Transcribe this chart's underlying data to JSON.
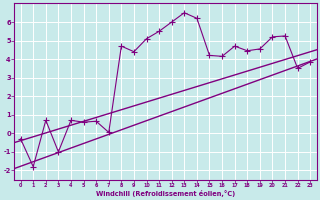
{
  "xlabel": "Windchill (Refroidissement éolien,°C)",
  "bg_color": "#c8eaea",
  "line_color": "#800080",
  "grid_color": "#ffffff",
  "xlim": [
    -0.5,
    23.5
  ],
  "ylim": [
    -2.5,
    7.0
  ],
  "xticks": [
    0,
    1,
    2,
    3,
    4,
    5,
    6,
    7,
    8,
    9,
    10,
    11,
    12,
    13,
    14,
    15,
    16,
    17,
    18,
    19,
    20,
    21,
    22,
    23
  ],
  "yticks": [
    -2,
    -1,
    0,
    1,
    2,
    3,
    4,
    5,
    6
  ],
  "scatter_x": [
    0,
    1,
    2,
    3,
    4,
    5,
    6,
    7,
    8,
    9,
    10,
    11,
    12,
    13,
    14,
    15,
    16,
    17,
    18,
    19,
    20,
    21,
    22,
    23
  ],
  "scatter_y": [
    -0.3,
    -1.8,
    0.7,
    -1.0,
    0.7,
    0.6,
    0.65,
    0.05,
    4.7,
    4.4,
    5.1,
    5.5,
    6.0,
    6.5,
    6.2,
    4.2,
    4.15,
    4.7,
    4.45,
    4.55,
    5.2,
    5.25,
    3.5,
    3.85
  ],
  "line1_x": [
    -0.5,
    23.5
  ],
  "line1_y": [
    -1.9,
    4.0
  ],
  "line2_x": [
    -0.5,
    23.5
  ],
  "line2_y": [
    -0.5,
    4.5
  ],
  "marker": "+",
  "markersize": 5.0,
  "linewidth_scatter": 0.8,
  "linewidth_trend": 1.0
}
